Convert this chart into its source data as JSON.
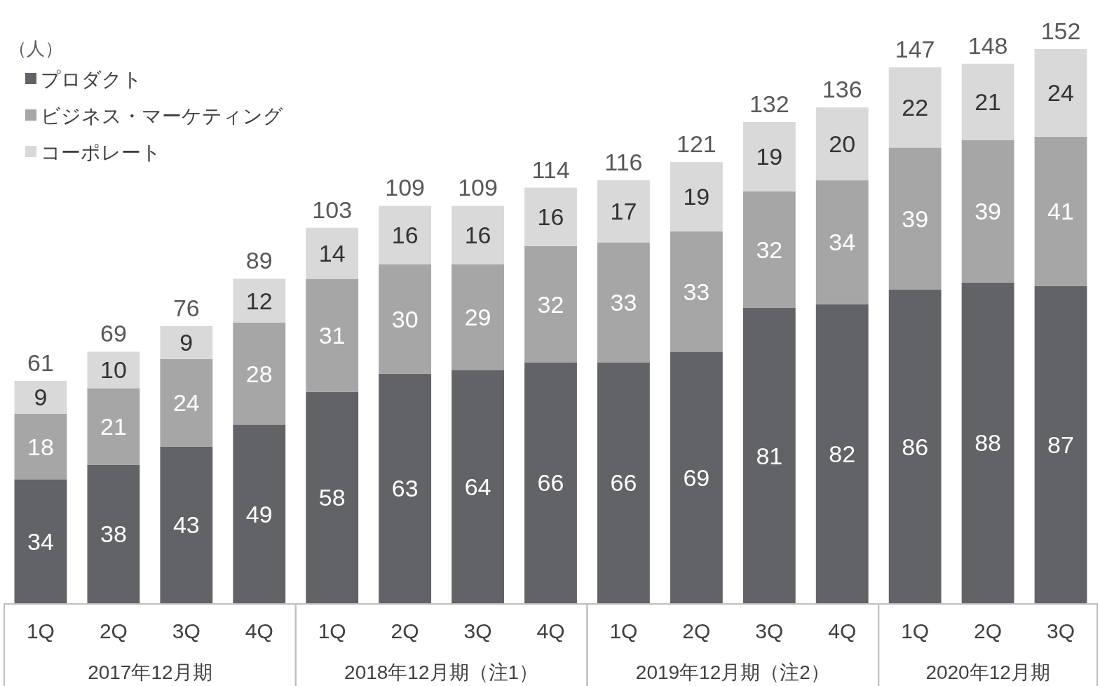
{
  "chart_data": {
    "type": "bar",
    "stacked": true,
    "ylabel": "（人）",
    "legend": "top left",
    "data_labels": true,
    "categories": [
      "1Q",
      "2Q",
      "3Q",
      "4Q",
      "1Q",
      "2Q",
      "3Q",
      "4Q",
      "1Q",
      "2Q",
      "3Q",
      "4Q",
      "1Q",
      "2Q",
      "3Q"
    ],
    "series": [
      {
        "name": "プロダクト",
        "color": "#626367",
        "values": [
          34,
          38,
          43,
          49,
          58,
          63,
          64,
          66,
          66,
          69,
          81,
          82,
          86,
          88,
          87
        ]
      },
      {
        "name": "ビジネス・マーケティング",
        "color": "#a6a6a6",
        "values": [
          18,
          21,
          24,
          28,
          31,
          30,
          29,
          32,
          33,
          33,
          32,
          34,
          39,
          39,
          41
        ]
      },
      {
        "name": "コーポレート",
        "color": "#d9d9d9",
        "values": [
          9,
          10,
          9,
          12,
          14,
          16,
          16,
          16,
          17,
          19,
          19,
          20,
          22,
          21,
          24
        ]
      }
    ],
    "totals": [
      "61",
      "69",
      "76",
      "89",
      "103",
      "109",
      "109",
      "114",
      "116",
      "121",
      "132",
      "136",
      "147",
      "148",
      "152"
    ],
    "annotations": [
      "2017年12月期",
      "2018年12月期（注1）",
      "2019年12月期（注2）",
      "2020年12月期"
    ]
  }
}
